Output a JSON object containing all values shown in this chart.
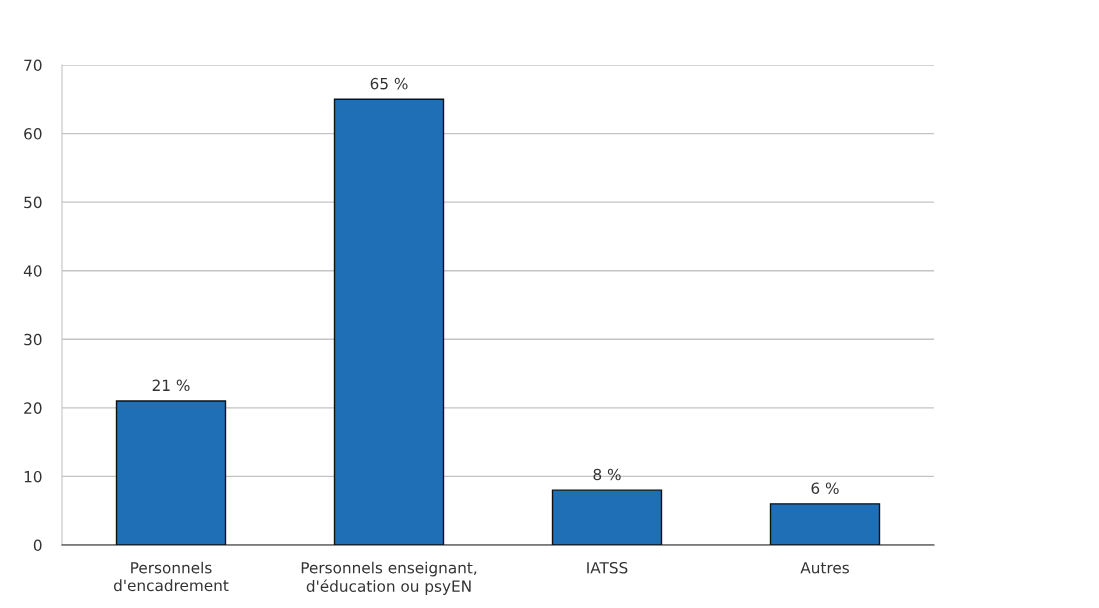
{
  "chart_data": {
    "type": "bar",
    "categories": [
      "Personnels\nd'encadrement",
      "Personnels enseignant,\nd'éducation ou psyEN",
      "IATSS",
      "Autres"
    ],
    "values": [
      21,
      65,
      8,
      6
    ],
    "value_labels": [
      "21 %",
      "65 %",
      "8 %",
      "6 %"
    ],
    "color": "#1f6fb6",
    "ylim": [
      0,
      70
    ],
    "yticks": [
      0,
      10,
      20,
      30,
      40,
      50,
      60,
      70
    ],
    "grid": "y",
    "legend": false
  }
}
